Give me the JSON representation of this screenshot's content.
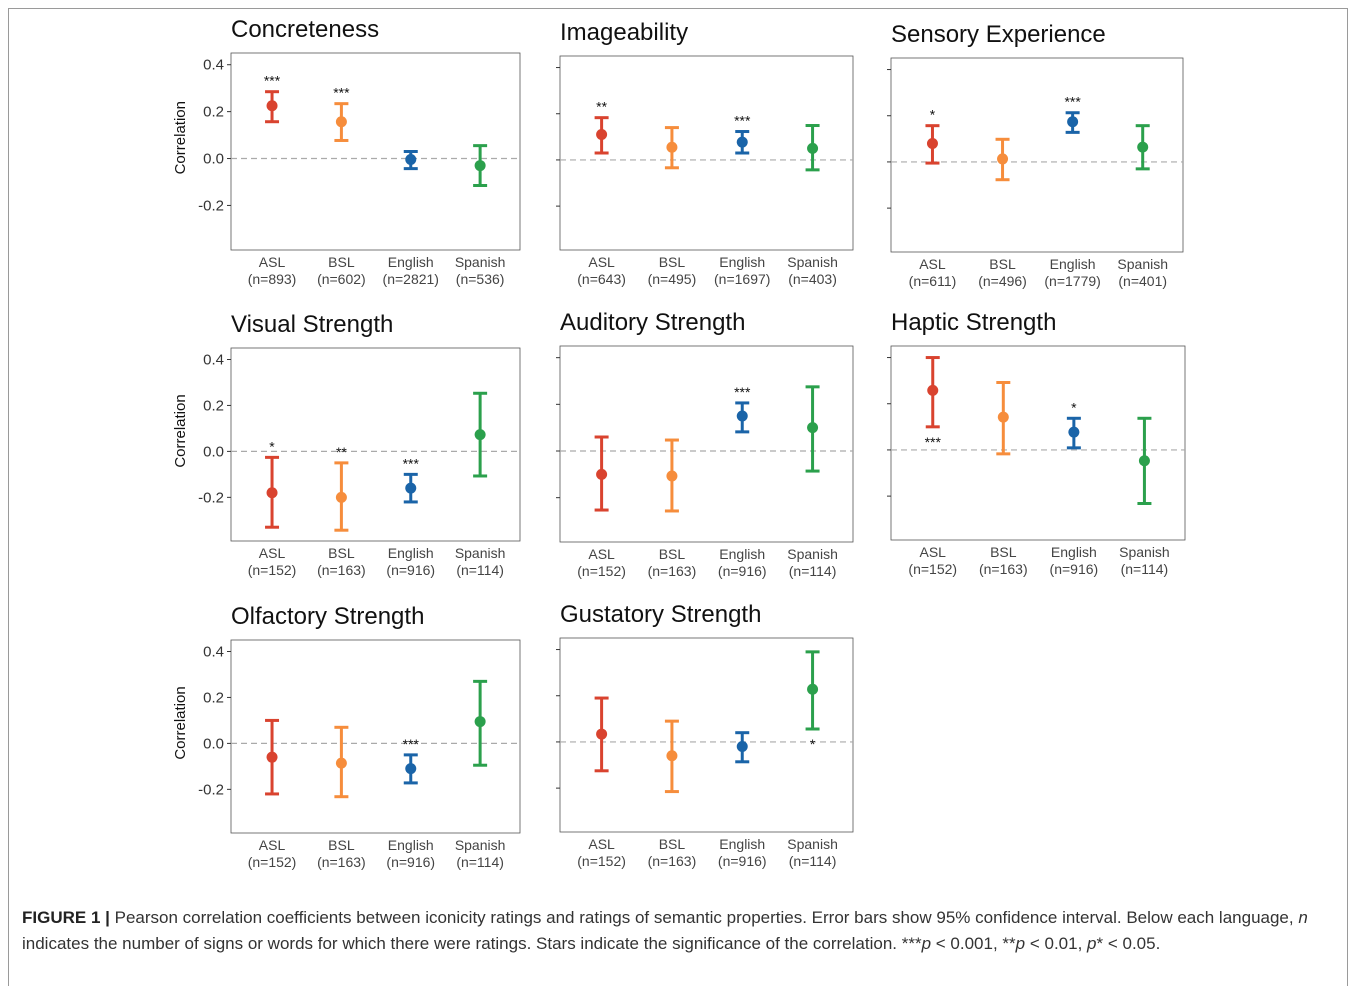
{
  "chart_data": [
    {
      "type": "errorbar",
      "title": "Concreteness",
      "ylabel": "Correlation",
      "ytick_labels": true,
      "zero_line": true,
      "categories": [
        "ASL",
        "BSL",
        "English",
        "Spanish"
      ],
      "n_labels": [
        "(n=893)",
        "(n=602)",
        "(n=2821)",
        "(n=536)"
      ],
      "colors": [
        "#d9432f",
        "#f68d3c",
        "#1a64a8",
        "#2ba04c"
      ],
      "values": [
        0.225,
        0.157,
        -0.004,
        -0.03
      ],
      "lower": [
        0.157,
        0.077,
        -0.043,
        -0.115
      ],
      "upper": [
        0.285,
        0.234,
        0.03,
        0.055
      ],
      "significance": [
        "***",
        "***",
        null,
        null
      ],
      "star_below": [
        false,
        false,
        false,
        false
      ],
      "ylim": [
        -0.39,
        0.45
      ],
      "yticks": [
        -0.2,
        {
          "value": 0,
          "label": "0.0"
        },
        0.2,
        0.4
      ]
    },
    {
      "type": "errorbar",
      "title": "Imageability",
      "ytick_labels": false,
      "zero_line": true,
      "categories": [
        "ASL",
        "BSL",
        "English",
        "Spanish"
      ],
      "n_labels": [
        "(n=643)",
        "(n=495)",
        "(n=1697)",
        "(n=403)"
      ],
      "colors": [
        "#d9432f",
        "#f68d3c",
        "#1a64a8",
        "#2ba04c"
      ],
      "values": [
        0.11,
        0.055,
        0.077,
        0.05
      ],
      "lower": [
        0.03,
        -0.034,
        0.03,
        -0.043
      ],
      "upper": [
        0.183,
        0.14,
        0.123,
        0.149
      ],
      "significance": [
        "**",
        null,
        "***",
        null
      ],
      "star_below": [
        false,
        false,
        false,
        false
      ],
      "ylim": [
        -0.39,
        0.45
      ],
      "yticks": [
        -0.2,
        0,
        0.2,
        0.4
      ]
    },
    {
      "type": "errorbar",
      "title": "Sensory Experience",
      "ytick_labels": false,
      "zero_line": true,
      "categories": [
        "ASL",
        "BSL",
        "English",
        "Spanish"
      ],
      "n_labels": [
        "(n=611)",
        "(n=496)",
        "(n=1779)",
        "(n=401)"
      ],
      "colors": [
        "#d9432f",
        "#f68d3c",
        "#1a64a8",
        "#2ba04c"
      ],
      "values": [
        0.08,
        0.013,
        0.174,
        0.064
      ],
      "lower": [
        -0.005,
        -0.077,
        0.128,
        -0.03
      ],
      "upper": [
        0.157,
        0.098,
        0.213,
        0.157
      ],
      "significance": [
        "*",
        null,
        "***",
        null
      ],
      "star_below": [
        false,
        false,
        false,
        false
      ],
      "ylim": [
        -0.39,
        0.45
      ],
      "yticks": [
        -0.2,
        0,
        0.2,
        0.4
      ]
    },
    {
      "type": "errorbar",
      "title": "Visual Strength",
      "ylabel": "Correlation",
      "ytick_labels": true,
      "zero_line": true,
      "categories": [
        "ASL",
        "BSL",
        "English",
        "Spanish"
      ],
      "n_labels": [
        "(n=152)",
        "(n=163)",
        "(n=916)",
        "(n=114)"
      ],
      "colors": [
        "#d9432f",
        "#f68d3c",
        "#1a64a8",
        "#2ba04c"
      ],
      "values": [
        -0.18,
        -0.2,
        -0.16,
        0.073
      ],
      "lower": [
        -0.33,
        -0.343,
        -0.22,
        -0.107
      ],
      "upper": [
        -0.026,
        -0.05,
        -0.1,
        0.253
      ],
      "significance": [
        "*",
        "**",
        "***",
        null
      ],
      "star_below": [
        false,
        false,
        false,
        false
      ],
      "ylim": [
        -0.39,
        0.45
      ],
      "yticks": [
        -0.2,
        {
          "value": 0,
          "label": "0.0"
        },
        0.2,
        0.4
      ]
    },
    {
      "type": "errorbar",
      "title": "Auditory Strength",
      "ytick_labels": false,
      "zero_line": true,
      "categories": [
        "ASL",
        "BSL",
        "English",
        "Spanish"
      ],
      "n_labels": [
        "(n=152)",
        "(n=163)",
        "(n=916)",
        "(n=114)"
      ],
      "colors": [
        "#d9432f",
        "#f68d3c",
        "#1a64a8",
        "#2ba04c"
      ],
      "values": [
        -0.1,
        -0.107,
        0.15,
        0.1
      ],
      "lower": [
        -0.253,
        -0.257,
        0.082,
        -0.086
      ],
      "upper": [
        0.06,
        0.047,
        0.206,
        0.275
      ],
      "significance": [
        null,
        null,
        "***",
        null
      ],
      "star_below": [
        false,
        false,
        false,
        false
      ],
      "ylim": [
        -0.39,
        0.45
      ],
      "yticks": [
        -0.2,
        0,
        0.2,
        0.4
      ]
    },
    {
      "type": "errorbar",
      "title": "Haptic Strength",
      "ytick_labels": false,
      "zero_line": true,
      "categories": [
        "ASL",
        "BSL",
        "English",
        "Spanish"
      ],
      "n_labels": [
        "(n=152)",
        "(n=163)",
        "(n=916)",
        "(n=114)"
      ],
      "colors": [
        "#d9432f",
        "#f68d3c",
        "#1a64a8",
        "#2ba04c"
      ],
      "values": [
        0.258,
        0.142,
        0.077,
        -0.047
      ],
      "lower": [
        0.1,
        -0.017,
        0.009,
        -0.232
      ],
      "upper": [
        0.4,
        0.292,
        0.137,
        0.137
      ],
      "significance": [
        "***",
        null,
        "*",
        null
      ],
      "star_below": [
        true,
        false,
        false,
        false
      ],
      "ylim": [
        -0.39,
        0.45
      ],
      "yticks": [
        -0.2,
        0,
        0.2,
        0.4
      ]
    },
    {
      "type": "errorbar",
      "title": "Olfactory Strength",
      "ylabel": "Correlation",
      "ytick_labels": true,
      "zero_line": true,
      "categories": [
        "ASL",
        "BSL",
        "English",
        "Spanish"
      ],
      "n_labels": [
        "(n=152)",
        "(n=163)",
        "(n=916)",
        "(n=114)"
      ],
      "colors": [
        "#d9432f",
        "#f68d3c",
        "#1a64a8",
        "#2ba04c"
      ],
      "values": [
        -0.06,
        -0.086,
        -0.11,
        0.095
      ],
      "lower": [
        -0.22,
        -0.232,
        -0.172,
        -0.095
      ],
      "upper": [
        0.1,
        0.07,
        -0.05,
        0.27
      ],
      "significance": [
        null,
        null,
        "***",
        null
      ],
      "star_below": [
        false,
        false,
        false,
        false
      ],
      "ylim": [
        -0.39,
        0.45
      ],
      "yticks": [
        -0.2,
        {
          "value": 0,
          "label": "0.0"
        },
        0.2,
        0.4
      ]
    },
    {
      "type": "errorbar",
      "title": "Gustatory Strength",
      "ytick_labels": false,
      "zero_line": true,
      "categories": [
        "ASL",
        "BSL",
        "English",
        "Spanish"
      ],
      "n_labels": [
        "(n=152)",
        "(n=163)",
        "(n=916)",
        "(n=114)"
      ],
      "colors": [
        "#d9432f",
        "#f68d3c",
        "#1a64a8",
        "#2ba04c"
      ],
      "values": [
        0.034,
        -0.06,
        -0.02,
        0.228
      ],
      "lower": [
        -0.125,
        -0.215,
        -0.086,
        0.056
      ],
      "upper": [
        0.19,
        0.09,
        0.04,
        0.39
      ],
      "significance": [
        null,
        null,
        null,
        "*"
      ],
      "star_below": [
        false,
        false,
        false,
        true
      ],
      "ylim": [
        -0.39,
        0.45
      ],
      "yticks": [
        -0.2,
        0,
        0.2,
        0.4
      ]
    }
  ],
  "caption": {
    "label": "FIGURE 1 |",
    "parts": [
      {
        "text": " Pearson correlation coefficients between iconicity ratings and ratings of semantic properties. Error bars show 95% confidence interval. Below each language, ",
        "italic": false
      },
      {
        "text": "n",
        "italic": true
      },
      {
        "text": " indicates the number of signs or words for which there were ratings. Stars indicate the significance of the correlation. ***",
        "italic": false
      },
      {
        "text": "p",
        "italic": true
      },
      {
        "text": " < 0.001, **",
        "italic": false
      },
      {
        "text": "p",
        "italic": true
      },
      {
        "text": " < 0.01, ",
        "italic": false
      },
      {
        "text": "p",
        "italic": true
      },
      {
        "text": "* < 0.05.",
        "italic": false
      }
    ]
  }
}
